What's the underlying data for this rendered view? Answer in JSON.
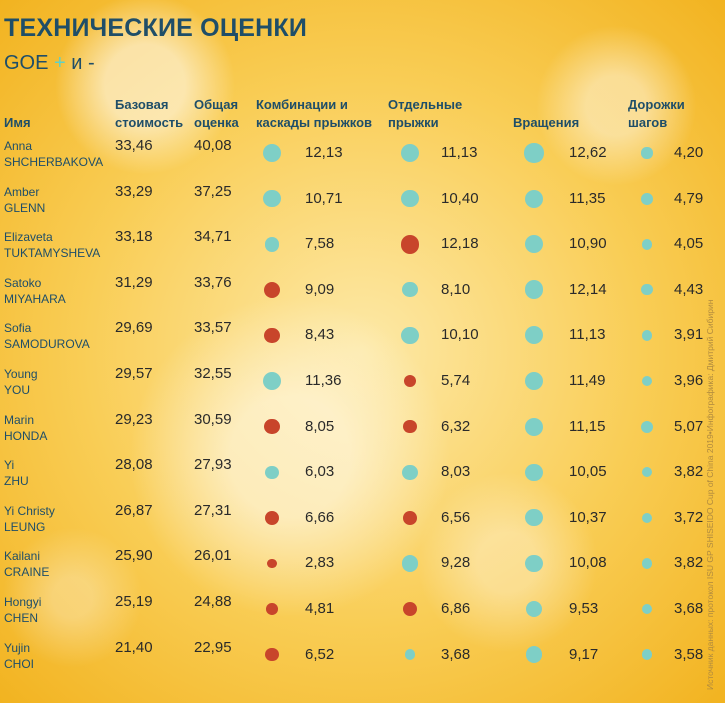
{
  "title": "ТЕХНИЧЕСКИЕ ОЦЕНКИ",
  "subtitle": {
    "goe": "GOE",
    "plus": "+",
    "rest": "и -"
  },
  "colors": {
    "positive": "#7ecfc6",
    "negative": "#c8452b",
    "title": "#1f4e68"
  },
  "headers": {
    "name": "Имя",
    "base": "Базовая стоимость",
    "total": "Общая оценка",
    "combos": "Комбинации и каскады прыжков",
    "jumps": "Отдельные прыжки",
    "spins": "Вращения",
    "steps": "Дорожки шагов"
  },
  "credit": "Источник данных: протокол ISU GP SHISEIDO Cup of China 2019•Инфографика: Дмитрий Сибирин",
  "chart_data": {
    "type": "table",
    "columns": [
      "Базовая стоимость",
      "Общая оценка",
      "Комбинации и каскады прыжков",
      "Отдельные прыжки",
      "Вращения",
      "Дорожки шагов"
    ],
    "rows": [
      {
        "first": "Anna",
        "last": "SHCHERBAKOVA",
        "base": "33,46",
        "total": "40,08",
        "combos": "12,13",
        "combos_goe": "+",
        "jumps": "11,13",
        "jumps_goe": "+",
        "spins": "12,62",
        "spins_goe": "+",
        "steps": "4,20",
        "steps_goe": "+"
      },
      {
        "first": "Amber",
        "last": "GLENN",
        "base": "33,29",
        "total": "37,25",
        "combos": "10,71",
        "combos_goe": "+",
        "jumps": "10,40",
        "jumps_goe": "+",
        "spins": "11,35",
        "spins_goe": "+",
        "steps": "4,79",
        "steps_goe": "+"
      },
      {
        "first": "Elizaveta",
        "last": "TUKTAMYSHEVA",
        "base": "33,18",
        "total": "34,71",
        "combos": "7,58",
        "combos_goe": "+",
        "jumps": "12,18",
        "jumps_goe": "-",
        "spins": "10,90",
        "spins_goe": "+",
        "steps": "4,05",
        "steps_goe": "+"
      },
      {
        "first": "Satoko",
        "last": "MIYAHARA",
        "base": "31,29",
        "total": "33,76",
        "combos": "9,09",
        "combos_goe": "-",
        "jumps": "8,10",
        "jumps_goe": "+",
        "spins": "12,14",
        "spins_goe": "+",
        "steps": "4,43",
        "steps_goe": "+"
      },
      {
        "first": "Sofia",
        "last": "SAMODUROVA",
        "base": "29,69",
        "total": "33,57",
        "combos": "8,43",
        "combos_goe": "-",
        "jumps": "10,10",
        "jumps_goe": "+",
        "spins": "11,13",
        "spins_goe": "+",
        "steps": "3,91",
        "steps_goe": "+"
      },
      {
        "first": "Young",
        "last": "YOU",
        "base": "29,57",
        "total": "32,55",
        "combos": "11,36",
        "combos_goe": "+",
        "jumps": "5,74",
        "jumps_goe": "-",
        "spins": "11,49",
        "spins_goe": "+",
        "steps": "3,96",
        "steps_goe": "+"
      },
      {
        "first": "Marin",
        "last": "HONDA",
        "base": "29,23",
        "total": "30,59",
        "combos": "8,05",
        "combos_goe": "-",
        "jumps": "6,32",
        "jumps_goe": "-",
        "spins": "11,15",
        "spins_goe": "+",
        "steps": "5,07",
        "steps_goe": "+"
      },
      {
        "first": "Yi",
        "last": "ZHU",
        "base": "28,08",
        "total": "27,93",
        "combos": "6,03",
        "combos_goe": "+",
        "jumps": "8,03",
        "jumps_goe": "+",
        "spins": "10,05",
        "spins_goe": "+",
        "steps": "3,82",
        "steps_goe": "+"
      },
      {
        "first": "Yi Christy",
        "last": "LEUNG",
        "base": "26,87",
        "total": "27,31",
        "combos": "6,66",
        "combos_goe": "-",
        "jumps": "6,56",
        "jumps_goe": "-",
        "spins": "10,37",
        "spins_goe": "+",
        "steps": "3,72",
        "steps_goe": "+"
      },
      {
        "first": "Kailani",
        "last": "CRAINE",
        "base": "25,90",
        "total": "26,01",
        "combos": "2,83",
        "combos_goe": "-",
        "jumps": "9,28",
        "jumps_goe": "+",
        "spins": "10,08",
        "spins_goe": "+",
        "steps": "3,82",
        "steps_goe": "+"
      },
      {
        "first": "Hongyi",
        "last": "CHEN",
        "base": "25,19",
        "total": "24,88",
        "combos": "4,81",
        "combos_goe": "-",
        "jumps": "6,86",
        "jumps_goe": "-",
        "spins": "9,53",
        "spins_goe": "+",
        "steps": "3,68",
        "steps_goe": "+"
      },
      {
        "first": "Yujin",
        "last": "CHOI",
        "base": "21,40",
        "total": "22,95",
        "combos": "6,52",
        "combos_goe": "-",
        "jumps": "3,68",
        "jumps_goe": "+",
        "spins": "9,17",
        "spins_goe": "+",
        "steps": "3,58",
        "steps_goe": "+"
      }
    ]
  }
}
